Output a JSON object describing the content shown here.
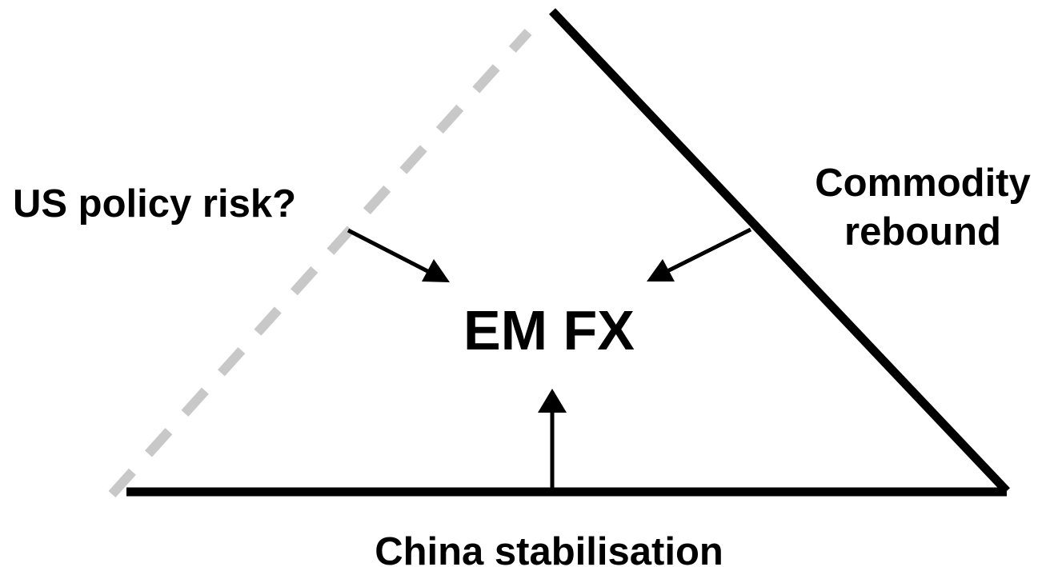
{
  "diagram": {
    "center_label": "EM FX",
    "left_label": "US policy risk?",
    "right_label_line1": "Commodity",
    "right_label_line2": "rebound",
    "bottom_label": "China stabilisation"
  },
  "colors": {
    "solid_edge": "#000000",
    "dashed_edge": "#c8c8c8",
    "text": "#000000",
    "background": "#ffffff"
  }
}
